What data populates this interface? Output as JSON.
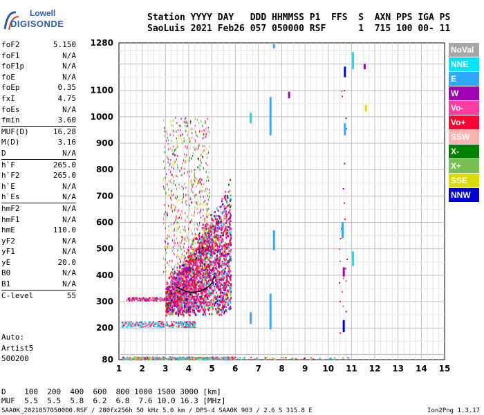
{
  "logo": {
    "line1": "Lowell",
    "line2": "DIGISONDE"
  },
  "header": {
    "line1": "Station YYYY DAY   DDD HHMMSS P1  FFS  S  AXN PPS IGA PS",
    "line2": "SaoLuis 2021 Feb26 057 050000 RSF      1  715 100 00- 11"
  },
  "params": [
    {
      "name": "foF2",
      "value": "5.150"
    },
    {
      "name": "foF1",
      "value": "N/A"
    },
    {
      "name": "foF1p",
      "value": "N/A"
    },
    {
      "name": "foE",
      "value": "N/A"
    },
    {
      "name": "foEp",
      "value": "0.35"
    },
    {
      "name": "fxI",
      "value": "4.75"
    },
    {
      "name": "foEs",
      "value": "N/A"
    },
    {
      "name": "fmin",
      "value": "3.60"
    },
    {
      "name": "MUF(D)",
      "value": "16.28",
      "sep": true
    },
    {
      "name": "M(D)",
      "value": "3.16"
    },
    {
      "name": "D",
      "value": "N/A"
    },
    {
      "name": "h`F",
      "value": "265.0",
      "sep": true
    },
    {
      "name": "h`F2",
      "value": "265.0"
    },
    {
      "name": "h`E",
      "value": "N/A"
    },
    {
      "name": "h`Es",
      "value": "N/A"
    },
    {
      "name": "hmF2",
      "value": "N/A",
      "sep": true
    },
    {
      "name": "hmF1",
      "value": "N/A"
    },
    {
      "name": "hmE",
      "value": "110.0"
    },
    {
      "name": "yF2",
      "value": "N/A"
    },
    {
      "name": "yF1",
      "value": "N/A"
    },
    {
      "name": "yE",
      "value": "20.0"
    },
    {
      "name": "B0",
      "value": "N/A"
    },
    {
      "name": "B1",
      "value": "N/A"
    },
    {
      "name": "C-level",
      "value": "55",
      "sep": true
    }
  ],
  "tail": {
    "auto": "Auto:",
    "artist": "Artist5",
    "version": "500200"
  },
  "legend": [
    {
      "label": "NoVal",
      "color": "#a6a6a6"
    },
    {
      "label": "NNE",
      "color": "#00e5ff"
    },
    {
      "label": "E",
      "color": "#2fa8ff"
    },
    {
      "label": "W",
      "color": "#a000b4"
    },
    {
      "label": "Vo-",
      "color": "#ff3ca0"
    },
    {
      "label": "Vo+",
      "color": "#ff0030"
    },
    {
      "label": "SSW",
      "color": "#ffb4b4"
    },
    {
      "label": "X-",
      "color": "#008000"
    },
    {
      "label": "X+",
      "color": "#78be50"
    },
    {
      "label": "SSE",
      "color": "#dcdc00"
    },
    {
      "label": "NNW",
      "color": "#0000d2"
    }
  ],
  "dmuf": {
    "d_line": "D    100  200  400  600  800 1000 1500 3000 [km]",
    "muf_line": "MUF  5.5  5.5  5.8  6.2  6.8  7.6 10.0 16.3 [MHz]"
  },
  "footer": {
    "left": "SAA0K_2021057050000.RSF / 280fx256h 50 kHz 5.0 km / DPS-4 SAA0K 903 / 2.6 S 315.8 E",
    "right": "Ion2Png 1.3.17"
  },
  "chart_data": {
    "type": "scatter",
    "x_ticks": [
      1,
      2,
      3,
      4,
      5,
      6,
      7,
      8,
      9,
      10,
      11,
      12,
      13,
      14,
      15
    ],
    "y_ticks": [
      80,
      200,
      300,
      400,
      500,
      600,
      700,
      800,
      900,
      1000,
      1100,
      1280
    ],
    "xlim": [
      1,
      15
    ],
    "ylim": [
      80,
      1280
    ],
    "grid": true,
    "legend_placement": "right",
    "trace": {
      "x": [
        3.5,
        3.7,
        3.9,
        4.1,
        4.3,
        4.5,
        4.7,
        4.9,
        5.0,
        5.05,
        5.1
      ],
      "y": [
        355,
        345,
        338,
        335,
        336,
        340,
        348,
        360,
        372,
        385,
        400
      ]
    },
    "streaks": [
      {
        "x": 6.65,
        "y": [
          975,
          1015
        ],
        "color": "#00e5ff"
      },
      {
        "x": 6.65,
        "y": [
          215,
          260
        ],
        "color": "#2fa8ff"
      },
      {
        "x": 7.5,
        "y": [
          930,
          1075
        ],
        "color": "#2fa8ff"
      },
      {
        "x": 7.5,
        "y": [
          195,
          330
        ],
        "color": "#2fa8ff"
      },
      {
        "x": 7.65,
        "y": [
          1260,
          1275
        ],
        "color": "#2fa8ff"
      },
      {
        "x": 7.65,
        "y": [
          495,
          570
        ],
        "color": "#2fa8ff"
      },
      {
        "x": 8.3,
        "y": [
          1070,
          1095
        ],
        "color": "#a000b4"
      },
      {
        "x": 10.6,
        "y": [
          540,
          600
        ],
        "color": "#2fa8ff"
      },
      {
        "x": 10.7,
        "y": [
          1150,
          1190
        ],
        "color": "#0000d2"
      },
      {
        "x": 10.7,
        "y": [
          930,
          975
        ],
        "color": "#2fa8ff"
      },
      {
        "x": 10.65,
        "y": [
          395,
          430
        ],
        "color": "#a000b4"
      },
      {
        "x": 10.65,
        "y": [
          185,
          230
        ],
        "color": "#0000d2"
      },
      {
        "x": 11.05,
        "y": [
          1180,
          1245
        ],
        "color": "#00e5ff"
      },
      {
        "x": 11.05,
        "y": [
          435,
          490
        ],
        "color": "#00e5ff"
      },
      {
        "x": 11.55,
        "y": [
          1180,
          1200
        ],
        "color": "#a000b4"
      },
      {
        "x": 11.6,
        "y": [
          1020,
          1045
        ],
        "color": "#dcdc00"
      }
    ]
  }
}
